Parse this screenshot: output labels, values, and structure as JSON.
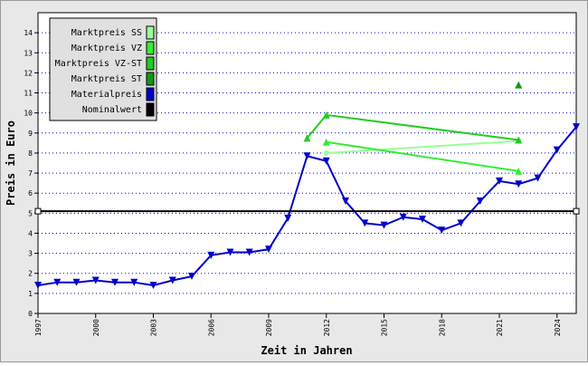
{
  "chart_data": {
    "type": "line",
    "xlabel": "Zeit in Jahren",
    "ylabel": "Preis in Euro",
    "xlim": [
      1997,
      2025
    ],
    "ylim": [
      0,
      15
    ],
    "xticks": [
      1997,
      2000,
      2003,
      2006,
      2009,
      2012,
      2015,
      2018,
      2021,
      2024
    ],
    "yticks": [
      0,
      1,
      2,
      3,
      4,
      5,
      6,
      7,
      8,
      9,
      10,
      11,
      12,
      13,
      14
    ],
    "grid": true,
    "legend": "upper left",
    "series": [
      {
        "name": "Marktpreis SS",
        "color": "#99ff99",
        "marker": "circle",
        "x": [
          2012,
          2022
        ],
        "values": [
          8.0,
          8.6
        ]
      },
      {
        "name": "Marktpreis VZ",
        "color": "#33ee33",
        "marker": "triangle-up",
        "x": [
          2012,
          2022
        ],
        "values": [
          8.55,
          7.1
        ]
      },
      {
        "name": "Marktpreis VZ-ST",
        "color": "#22cc22",
        "marker": "triangle-up",
        "x": [
          2011,
          2012,
          2022
        ],
        "values": [
          8.75,
          9.9,
          8.65
        ]
      },
      {
        "name": "Marktpreis ST",
        "color": "#119911",
        "marker": "triangle-up",
        "x": [
          2022
        ],
        "values": [
          11.4
        ]
      },
      {
        "name": "Materialpreis",
        "color": "#0000cc",
        "marker": "triangle-down",
        "x": [
          1997,
          1998,
          1999,
          2000,
          2001,
          2002,
          2003,
          2004,
          2005,
          2006,
          2007,
          2008,
          2009,
          2010,
          2011,
          2012,
          2013,
          2014,
          2015,
          2016,
          2017,
          2018,
          2019,
          2020,
          2021,
          2022,
          2023,
          2024,
          2025
        ],
        "values": [
          1.4,
          1.55,
          1.55,
          1.65,
          1.55,
          1.55,
          1.4,
          1.65,
          1.85,
          2.9,
          3.05,
          3.05,
          3.2,
          4.75,
          7.85,
          7.6,
          5.6,
          4.5,
          4.4,
          4.8,
          4.7,
          4.15,
          4.5,
          5.6,
          6.6,
          6.45,
          6.75,
          8.15,
          9.3
        ]
      },
      {
        "name": "Nominalwert",
        "color": "#000000",
        "marker": "square",
        "x": [
          1997,
          2025
        ],
        "values": [
          5.1,
          5.1
        ]
      }
    ]
  }
}
